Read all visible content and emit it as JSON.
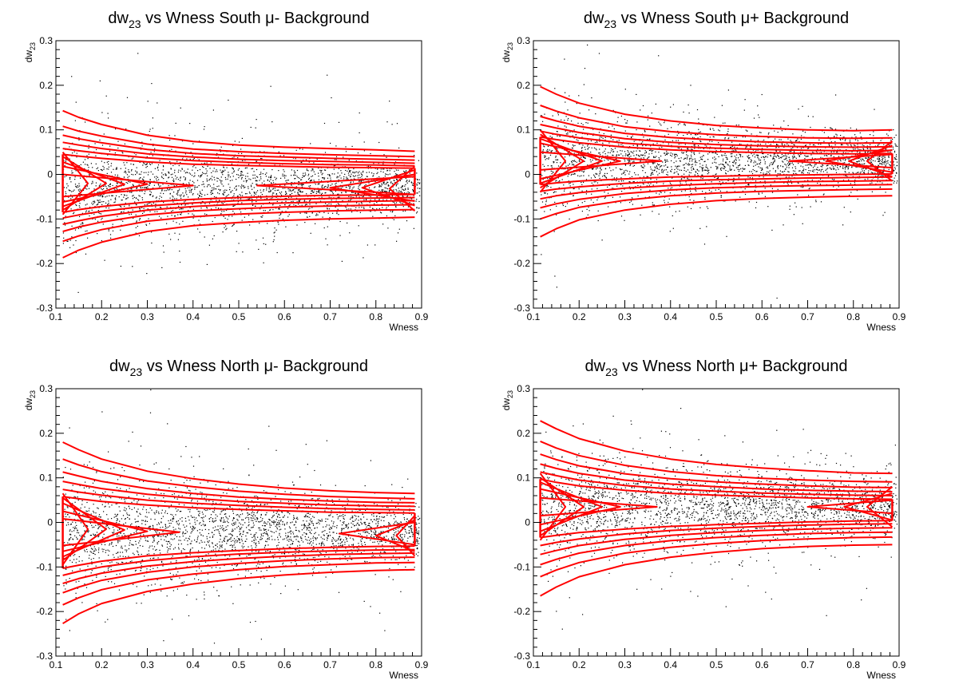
{
  "colors": {
    "contour": "#ff0000",
    "points": "#000000",
    "frame": "#000000",
    "background": "#ffffff"
  },
  "chart_data": [
    {
      "type": "scatter",
      "title_main": "dw",
      "title_sub": "23",
      "title_rest": " vs Wness South μ- Background",
      "xlabel": "Wness",
      "ylabel_main": "dw",
      "ylabel_sub": "23",
      "xlim": [
        0.1,
        0.9
      ],
      "ylim": [
        -0.3,
        0.3
      ],
      "xticks": [
        "0.1",
        "0.2",
        "0.3",
        "0.4",
        "0.5",
        "0.6",
        "0.7",
        "0.8",
        "0.9"
      ],
      "yticks": [
        "-0.3",
        "-0.2",
        "-0.1",
        "0",
        "0.1",
        "0.2",
        "0.3"
      ],
      "grid": false,
      "center": -0.03,
      "spread_start": 0.055,
      "spread_end": 0.028,
      "contour_x": [
        0.115,
        0.15,
        0.2,
        0.3,
        0.4,
        0.5,
        0.6,
        0.7,
        0.8,
        0.885
      ],
      "contour_upper": [
        [
          0.143,
          0.128,
          0.112,
          0.088,
          0.074,
          0.066,
          0.061,
          0.058,
          0.055,
          0.052
        ],
        [
          0.108,
          0.097,
          0.086,
          0.068,
          0.057,
          0.051,
          0.047,
          0.044,
          0.042,
          0.04
        ],
        [
          0.088,
          0.08,
          0.071,
          0.056,
          0.047,
          0.042,
          0.039,
          0.036,
          0.034,
          0.032
        ],
        [
          0.072,
          0.066,
          0.058,
          0.046,
          0.039,
          0.034,
          0.031,
          0.029,
          0.027,
          0.025
        ],
        [
          0.058,
          0.053,
          0.047,
          0.037,
          0.031,
          0.027,
          0.024,
          0.022,
          0.021,
          0.019
        ],
        [
          0.045,
          0.041,
          0.036,
          0.028,
          0.023,
          0.02,
          0.018,
          0.016,
          0.015,
          0.014
        ]
      ],
      "contour_lower": [
        [
          -0.187,
          -0.17,
          -0.152,
          -0.128,
          -0.115,
          -0.108,
          -0.103,
          -0.1,
          -0.098,
          -0.096
        ],
        [
          -0.15,
          -0.138,
          -0.124,
          -0.105,
          -0.095,
          -0.089,
          -0.085,
          -0.082,
          -0.08,
          -0.079
        ],
        [
          -0.128,
          -0.118,
          -0.107,
          -0.091,
          -0.082,
          -0.077,
          -0.073,
          -0.071,
          -0.069,
          -0.068
        ],
        [
          -0.112,
          -0.104,
          -0.094,
          -0.08,
          -0.072,
          -0.067,
          -0.064,
          -0.062,
          -0.06,
          -0.059
        ],
        [
          -0.098,
          -0.091,
          -0.083,
          -0.071,
          -0.064,
          -0.059,
          -0.056,
          -0.054,
          -0.053,
          -0.052
        ],
        [
          -0.085,
          -0.079,
          -0.072,
          -0.062,
          -0.056,
          -0.052,
          -0.049,
          -0.047,
          -0.046,
          -0.045
        ]
      ],
      "chevrons_left": [
        {
          "x_tip": 0.17,
          "y_tip": -0.02,
          "half": 0.07
        },
        {
          "x_tip": 0.21,
          "y_tip": -0.02,
          "half": 0.06
        },
        {
          "x_tip": 0.25,
          "y_tip": -0.022,
          "half": 0.05
        },
        {
          "x_tip": 0.3,
          "y_tip": -0.022,
          "half": 0.04
        },
        {
          "x_tip": 0.4,
          "y_tip": -0.025,
          "half": 0.025
        }
      ],
      "chevrons_right": [
        {
          "x_tip": 0.54,
          "y_tip": -0.025,
          "half": 0.02
        },
        {
          "x_tip": 0.7,
          "y_tip": -0.03,
          "half": 0.03
        },
        {
          "x_tip": 0.77,
          "y_tip": -0.03,
          "half": 0.04
        },
        {
          "x_tip": 0.83,
          "y_tip": -0.032,
          "half": 0.05
        }
      ]
    },
    {
      "type": "scatter",
      "title_main": "dw",
      "title_sub": "23",
      "title_rest": " vs Wness South μ+ Background",
      "xlabel": "Wness",
      "ylabel_main": "dw",
      "ylabel_sub": "23",
      "xlim": [
        0.1,
        0.9
      ],
      "ylim": [
        -0.3,
        0.3
      ],
      "xticks": [
        "0.1",
        "0.2",
        "0.3",
        "0.4",
        "0.5",
        "0.6",
        "0.7",
        "0.8",
        "0.9"
      ],
      "yticks": [
        "-0.3",
        "-0.2",
        "-0.1",
        "0",
        "0.1",
        "0.2",
        "0.3"
      ],
      "grid": false,
      "center": 0.03,
      "spread_start": 0.055,
      "spread_end": 0.028,
      "contour_x": [
        0.115,
        0.15,
        0.2,
        0.3,
        0.4,
        0.5,
        0.6,
        0.7,
        0.8,
        0.885
      ],
      "contour_upper": [
        [
          0.197,
          0.18,
          0.16,
          0.135,
          0.12,
          0.11,
          0.104,
          0.1,
          0.098,
          0.1
        ],
        [
          0.155,
          0.142,
          0.127,
          0.107,
          0.096,
          0.089,
          0.085,
          0.082,
          0.081,
          0.082
        ],
        [
          0.13,
          0.12,
          0.108,
          0.092,
          0.083,
          0.077,
          0.073,
          0.071,
          0.07,
          0.071
        ],
        [
          0.112,
          0.104,
          0.094,
          0.08,
          0.072,
          0.067,
          0.064,
          0.062,
          0.061,
          0.062
        ],
        [
          0.097,
          0.09,
          0.082,
          0.07,
          0.063,
          0.059,
          0.056,
          0.054,
          0.053,
          0.054
        ],
        [
          0.084,
          0.078,
          0.071,
          0.061,
          0.055,
          0.051,
          0.049,
          0.047,
          0.046,
          0.047
        ]
      ],
      "contour_lower": [
        [
          -0.14,
          -0.122,
          -0.102,
          -0.08,
          -0.067,
          -0.059,
          -0.054,
          -0.051,
          -0.049,
          -0.048
        ],
        [
          -0.1,
          -0.088,
          -0.074,
          -0.058,
          -0.048,
          -0.042,
          -0.038,
          -0.036,
          -0.034,
          -0.033
        ],
        [
          -0.075,
          -0.066,
          -0.056,
          -0.043,
          -0.035,
          -0.03,
          -0.027,
          -0.025,
          -0.024,
          -0.023
        ],
        [
          -0.055,
          -0.048,
          -0.041,
          -0.031,
          -0.025,
          -0.021,
          -0.018,
          -0.016,
          -0.015,
          -0.014
        ],
        [
          -0.038,
          -0.033,
          -0.028,
          -0.02,
          -0.015,
          -0.012,
          -0.01,
          -0.008,
          -0.007,
          -0.006
        ],
        [
          -0.023,
          -0.019,
          -0.015,
          -0.01,
          -0.006,
          -0.004,
          -0.002,
          -0.001,
          0.0,
          0.001
        ]
      ],
      "chevrons_left": [
        {
          "x_tip": 0.17,
          "y_tip": 0.03,
          "half": 0.07
        },
        {
          "x_tip": 0.21,
          "y_tip": 0.03,
          "half": 0.06
        },
        {
          "x_tip": 0.25,
          "y_tip": 0.03,
          "half": 0.05
        },
        {
          "x_tip": 0.29,
          "y_tip": 0.03,
          "half": 0.04
        },
        {
          "x_tip": 0.38,
          "y_tip": 0.03,
          "half": 0.02
        }
      ],
      "chevrons_right": [
        {
          "x_tip": 0.66,
          "y_tip": 0.03,
          "half": 0.015
        },
        {
          "x_tip": 0.74,
          "y_tip": 0.03,
          "half": 0.025
        },
        {
          "x_tip": 0.79,
          "y_tip": 0.03,
          "half": 0.035
        },
        {
          "x_tip": 0.83,
          "y_tip": 0.03,
          "half": 0.045
        }
      ]
    },
    {
      "type": "scatter",
      "title_main": "dw",
      "title_sub": "23",
      "title_rest": " vs Wness North μ- Background",
      "xlabel": "Wness",
      "ylabel_main": "dw",
      "ylabel_sub": "23",
      "xlim": [
        0.1,
        0.9
      ],
      "ylim": [
        -0.3,
        0.3
      ],
      "xticks": [
        "0.1",
        "0.2",
        "0.3",
        "0.4",
        "0.5",
        "0.6",
        "0.7",
        "0.8",
        "0.9"
      ],
      "yticks": [
        "-0.3",
        "-0.2",
        "-0.1",
        "0",
        "0.1",
        "0.2",
        "0.3"
      ],
      "grid": false,
      "center": -0.02,
      "spread_start": 0.065,
      "spread_end": 0.03,
      "contour_x": [
        0.115,
        0.15,
        0.2,
        0.3,
        0.4,
        0.5,
        0.6,
        0.7,
        0.8,
        0.885
      ],
      "contour_upper": [
        [
          0.18,
          0.163,
          0.142,
          0.115,
          0.098,
          0.086,
          0.077,
          0.071,
          0.067,
          0.065
        ],
        [
          0.142,
          0.129,
          0.114,
          0.093,
          0.08,
          0.07,
          0.063,
          0.058,
          0.055,
          0.053
        ],
        [
          0.113,
          0.104,
          0.092,
          0.076,
          0.065,
          0.057,
          0.052,
          0.048,
          0.045,
          0.044
        ],
        [
          0.092,
          0.085,
          0.076,
          0.063,
          0.054,
          0.047,
          0.043,
          0.039,
          0.037,
          0.036
        ],
        [
          0.074,
          0.068,
          0.061,
          0.05,
          0.043,
          0.038,
          0.034,
          0.031,
          0.029,
          0.028
        ],
        [
          0.058,
          0.053,
          0.047,
          0.039,
          0.033,
          0.029,
          0.026,
          0.023,
          0.022,
          0.021
        ]
      ],
      "contour_lower": [
        [
          -0.227,
          -0.205,
          -0.182,
          -0.155,
          -0.138,
          -0.126,
          -0.118,
          -0.112,
          -0.108,
          -0.106
        ],
        [
          -0.185,
          -0.169,
          -0.151,
          -0.129,
          -0.116,
          -0.106,
          -0.099,
          -0.095,
          -0.091,
          -0.09
        ],
        [
          -0.158,
          -0.145,
          -0.13,
          -0.112,
          -0.1,
          -0.092,
          -0.086,
          -0.082,
          -0.079,
          -0.078
        ],
        [
          -0.137,
          -0.126,
          -0.114,
          -0.098,
          -0.088,
          -0.081,
          -0.076,
          -0.072,
          -0.07,
          -0.069
        ],
        [
          -0.119,
          -0.11,
          -0.1,
          -0.086,
          -0.077,
          -0.071,
          -0.067,
          -0.064,
          -0.062,
          -0.061
        ],
        [
          -0.103,
          -0.096,
          -0.087,
          -0.075,
          -0.068,
          -0.063,
          -0.059,
          -0.056,
          -0.054,
          -0.053
        ]
      ],
      "chevrons_left": [
        {
          "x_tip": 0.17,
          "y_tip": -0.015,
          "half": 0.08
        },
        {
          "x_tip": 0.21,
          "y_tip": -0.015,
          "half": 0.07
        },
        {
          "x_tip": 0.25,
          "y_tip": -0.017,
          "half": 0.06
        },
        {
          "x_tip": 0.3,
          "y_tip": -0.02,
          "half": 0.045
        },
        {
          "x_tip": 0.37,
          "y_tip": -0.022,
          "half": 0.03
        }
      ],
      "chevrons_right": [
        {
          "x_tip": 0.72,
          "y_tip": -0.025,
          "half": 0.025
        },
        {
          "x_tip": 0.8,
          "y_tip": -0.03,
          "half": 0.035
        },
        {
          "x_tip": 0.845,
          "y_tip": -0.03,
          "half": 0.045
        }
      ]
    },
    {
      "type": "scatter",
      "title_main": "dw",
      "title_sub": "23",
      "title_rest": " vs Wness North μ+ Background",
      "xlabel": "Wness",
      "ylabel_main": "dw",
      "ylabel_sub": "23",
      "xlim": [
        0.1,
        0.9
      ],
      "ylim": [
        -0.3,
        0.3
      ],
      "xticks": [
        "0.1",
        "0.2",
        "0.3",
        "0.4",
        "0.5",
        "0.6",
        "0.7",
        "0.8",
        "0.9"
      ],
      "yticks": [
        "-0.3",
        "-0.2",
        "-0.1",
        "0",
        "0.1",
        "0.2",
        "0.3"
      ],
      "grid": false,
      "center": 0.035,
      "spread_start": 0.06,
      "spread_end": 0.03,
      "contour_x": [
        0.115,
        0.15,
        0.2,
        0.3,
        0.4,
        0.5,
        0.6,
        0.7,
        0.8,
        0.885
      ],
      "contour_upper": [
        [
          0.228,
          0.21,
          0.188,
          0.16,
          0.142,
          0.13,
          0.122,
          0.116,
          0.111,
          0.11
        ],
        [
          0.182,
          0.167,
          0.15,
          0.128,
          0.114,
          0.105,
          0.099,
          0.095,
          0.092,
          0.091
        ],
        [
          0.153,
          0.141,
          0.127,
          0.109,
          0.098,
          0.091,
          0.086,
          0.082,
          0.079,
          0.078
        ],
        [
          0.131,
          0.121,
          0.11,
          0.095,
          0.086,
          0.08,
          0.075,
          0.072,
          0.07,
          0.069
        ],
        [
          0.113,
          0.105,
          0.095,
          0.083,
          0.075,
          0.07,
          0.066,
          0.063,
          0.061,
          0.06
        ],
        [
          0.097,
          0.09,
          0.082,
          0.072,
          0.065,
          0.061,
          0.058,
          0.055,
          0.053,
          0.052
        ]
      ],
      "contour_lower": [
        [
          -0.165,
          -0.145,
          -0.122,
          -0.095,
          -0.078,
          -0.067,
          -0.059,
          -0.054,
          -0.051,
          -0.05
        ],
        [
          -0.122,
          -0.107,
          -0.09,
          -0.069,
          -0.056,
          -0.047,
          -0.041,
          -0.037,
          -0.034,
          -0.033
        ],
        [
          -0.095,
          -0.083,
          -0.069,
          -0.052,
          -0.041,
          -0.034,
          -0.029,
          -0.025,
          -0.023,
          -0.022
        ],
        [
          -0.072,
          -0.063,
          -0.052,
          -0.038,
          -0.029,
          -0.023,
          -0.018,
          -0.015,
          -0.013,
          -0.012
        ],
        [
          -0.052,
          -0.045,
          -0.037,
          -0.026,
          -0.018,
          -0.013,
          -0.009,
          -0.006,
          -0.004,
          -0.003
        ],
        [
          -0.034,
          -0.029,
          -0.023,
          -0.015,
          -0.009,
          -0.005,
          -0.002,
          0.001,
          0.003,
          0.004
        ]
      ],
      "chevrons_left": [
        {
          "x_tip": 0.17,
          "y_tip": 0.035,
          "half": 0.075
        },
        {
          "x_tip": 0.21,
          "y_tip": 0.035,
          "half": 0.065
        },
        {
          "x_tip": 0.25,
          "y_tip": 0.035,
          "half": 0.055
        },
        {
          "x_tip": 0.29,
          "y_tip": 0.035,
          "half": 0.04
        },
        {
          "x_tip": 0.37,
          "y_tip": 0.035,
          "half": 0.02
        }
      ],
      "chevrons_right": [
        {
          "x_tip": 0.7,
          "y_tip": 0.035,
          "half": 0.015
        },
        {
          "x_tip": 0.78,
          "y_tip": 0.035,
          "half": 0.03
        },
        {
          "x_tip": 0.83,
          "y_tip": 0.035,
          "half": 0.045
        }
      ]
    }
  ]
}
